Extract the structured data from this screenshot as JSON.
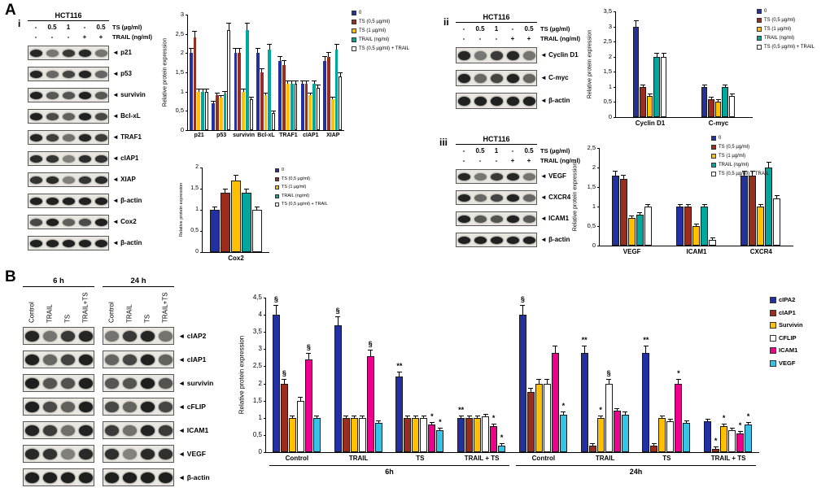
{
  "panels": {
    "a": {
      "label": "A"
    },
    "b": {
      "label": "B"
    }
  },
  "blots": [
    {
      "id": "blot-a-i",
      "sub_label": "i",
      "cell_line": "HCT116",
      "lanes": 5,
      "condition_rows": [
        {
          "values": [
            "-",
            "0.5",
            "1",
            "-",
            "0.5"
          ],
          "label": "TS (µg/ml)"
        },
        {
          "values": [
            "-",
            "-",
            "-",
            "+",
            "+"
          ],
          "label": "TRAIL (ng/ml)"
        }
      ],
      "bands": [
        "p21",
        "p53",
        "survivin",
        "Bcl-xL",
        "TRAF1",
        "cIAP1",
        "XIAP",
        "β-actin",
        "Cox2",
        "β-actin"
      ]
    },
    {
      "id": "blot-a-ii",
      "sub_label": "ii",
      "cell_line": "HCT116",
      "lanes": 5,
      "condition_rows": [
        {
          "values": [
            "-",
            "0.5",
            "1",
            "-",
            "0.5"
          ],
          "label": "TS (µg/ml)"
        },
        {
          "values": [
            "-",
            "-",
            "-",
            "+",
            "+"
          ],
          "label": "TRAIL (ng/ml)"
        }
      ],
      "bands": [
        "Cyclin D1",
        "C-myc",
        "β-actin"
      ]
    },
    {
      "id": "blot-a-iii",
      "sub_label": "iii",
      "cell_line": "HCT116",
      "lanes": 5,
      "condition_rows": [
        {
          "values": [
            "-",
            "0.5",
            "1",
            "-",
            "0.5"
          ],
          "label": "TS (µg/ml)"
        },
        {
          "values": [
            "-",
            "-",
            "-",
            "+",
            "+"
          ],
          "label": "TRAIL (ng/ml)"
        }
      ],
      "bands": [
        "VEGF",
        "CXCR4",
        "ICAM1",
        "β-actin"
      ]
    },
    {
      "id": "blot-b",
      "groups": [
        {
          "title": "6 h",
          "lanes": [
            "Control",
            "TRAIL",
            "TS",
            "TRAIL+TS"
          ]
        },
        {
          "title": "24 h",
          "lanes": [
            "Control",
            "TRAIL",
            "TS",
            "TRAIL+TS"
          ]
        }
      ],
      "bands": [
        "cIAP2",
        "cIAP1",
        "survivin",
        "cFLIP",
        "ICAM1",
        "VEGF",
        "β-actin"
      ]
    }
  ],
  "chart_data": [
    {
      "id": "a_i_main",
      "type": "bar",
      "ylabel": "Relative protein expression",
      "ylim": [
        0,
        3
      ],
      "ystep": 0.5,
      "grid": false,
      "legend_position": "right",
      "categories": [
        "p21",
        "p53",
        "survivin",
        "Bcl-xL",
        "TRAF1",
        "cIAP1",
        "XIAP"
      ],
      "series": [
        {
          "name": "0",
          "color": "#2230A2",
          "values": [
            2.0,
            0.7,
            2.0,
            2.0,
            1.8,
            1.2,
            1.8
          ]
        },
        {
          "name": "TS (0,5 µg/ml)",
          "color": "#9B2D1F",
          "values": [
            2.4,
            0.9,
            2.0,
            1.5,
            1.7,
            1.2,
            1.9
          ]
        },
        {
          "name": "TS (1 µg/ml)",
          "color": "#FFC000",
          "values": [
            1.0,
            0.85,
            1.0,
            0.9,
            1.2,
            0.9,
            0.8
          ]
        },
        {
          "name": "TRAIL (ng/ml)",
          "color": "#00A79D",
          "values": [
            1.0,
            0.95,
            2.6,
            2.1,
            1.2,
            1.2,
            2.1
          ]
        },
        {
          "name": "TS (0,5 µg/ml) + TRAIL",
          "color": "#FFFFFF",
          "values": [
            1.0,
            2.6,
            0.8,
            0.45,
            1.2,
            1.1,
            1.4
          ]
        }
      ]
    },
    {
      "id": "a_i_cox2",
      "type": "bar",
      "ylabel": "Relative protein expression",
      "ylim": [
        0,
        2
      ],
      "ystep": 0.5,
      "grid": false,
      "legend_position": "right",
      "categories": [
        "Cox2"
      ],
      "series": [
        {
          "name": "0",
          "color": "#2230A2",
          "values": [
            1.0
          ]
        },
        {
          "name": "TS (0,5 µg/ml)",
          "color": "#9B2D1F",
          "values": [
            1.4
          ]
        },
        {
          "name": "TS (1 µg/ml)",
          "color": "#FFC000",
          "values": [
            1.7
          ]
        },
        {
          "name": "TRAIL (ng/ml)",
          "color": "#00A79D",
          "values": [
            1.4
          ]
        },
        {
          "name": "TS (0,5 µg/ml) + TRAIL",
          "color": "#FFFFFF",
          "values": [
            1.0
          ]
        }
      ]
    },
    {
      "id": "a_ii",
      "type": "bar",
      "ylabel": "Relative protein expression",
      "ylim": [
        0,
        3.5
      ],
      "ystep": 0.5,
      "grid": false,
      "legend_position": "right",
      "categories": [
        "Cyclin D1",
        "C-myc"
      ],
      "series": [
        {
          "name": "0",
          "color": "#2230A2",
          "values": [
            3.0,
            1.0
          ]
        },
        {
          "name": "TS (0,5 µg/ml)",
          "color": "#9B2D1F",
          "values": [
            1.0,
            0.6
          ]
        },
        {
          "name": "TS (1 µg/ml)",
          "color": "#FFC000",
          "values": [
            0.7,
            0.5
          ]
        },
        {
          "name": "TRAIL (ng/ml)",
          "color": "#00A79D",
          "values": [
            2.0,
            1.0
          ]
        },
        {
          "name": "TS (0,5 µg/ml) + TRAIL",
          "color": "#FFFFFF",
          "values": [
            2.0,
            0.7
          ]
        }
      ]
    },
    {
      "id": "a_iii",
      "type": "bar",
      "ylabel": "Relative protein expression",
      "ylim": [
        0,
        2.5
      ],
      "ystep": 0.5,
      "grid": false,
      "legend_position": "right",
      "categories": [
        "VEGF",
        "ICAM1",
        "CXCR4"
      ],
      "series": [
        {
          "name": "0",
          "color": "#2230A2",
          "values": [
            1.8,
            1.0,
            1.8
          ]
        },
        {
          "name": "TS (0,5 µg/ml)",
          "color": "#9B2D1F",
          "values": [
            1.7,
            1.0,
            1.8
          ]
        },
        {
          "name": "TS (1 µg/ml)",
          "color": "#FFC000",
          "values": [
            0.7,
            0.5,
            1.0
          ]
        },
        {
          "name": "TRAIL (ng/ml)",
          "color": "#00A79D",
          "values": [
            0.8,
            1.0,
            2.0
          ]
        },
        {
          "name": "TS (0,5 µg/ml) + TRAIL",
          "color": "#FFFFFF",
          "values": [
            1.0,
            0.15,
            1.2
          ]
        }
      ]
    },
    {
      "id": "b_timecourse",
      "type": "bar",
      "ylabel": "Relative protein expression",
      "ylim": [
        0,
        4.5
      ],
      "ystep": 0.5,
      "grid": false,
      "legend_position": "right",
      "categories": [
        "Control",
        "TRAIL",
        "TS",
        "TRAIL + TS",
        "Control",
        "TRAIL",
        "TS",
        "TRAIL + TS"
      ],
      "group_labels": [
        {
          "text": "6h",
          "span": [
            0,
            3
          ]
        },
        {
          "text": "24h",
          "span": [
            4,
            7
          ]
        }
      ],
      "series": [
        {
          "name": "cIPA2",
          "color": "#2230A2",
          "values": [
            4.0,
            3.7,
            2.2,
            1.0,
            4.0,
            2.9,
            2.9,
            0.9
          ]
        },
        {
          "name": "cIAP1",
          "color": "#9B2D1F",
          "values": [
            2.0,
            1.0,
            1.0,
            1.0,
            1.75,
            0.2,
            0.2,
            0.1
          ]
        },
        {
          "name": "Survivin",
          "color": "#FFC000",
          "values": [
            1.0,
            1.0,
            1.0,
            1.0,
            2.0,
            1.0,
            1.0,
            0.75
          ]
        },
        {
          "name": "CFLIP",
          "color": "#FFFFFF",
          "values": [
            1.5,
            1.0,
            1.0,
            1.05,
            2.0,
            2.0,
            0.9,
            0.65
          ]
        },
        {
          "name": "ICAM1",
          "color": "#EC008C",
          "values": [
            2.7,
            2.8,
            0.8,
            0.75,
            2.9,
            1.2,
            2.0,
            0.55
          ]
        },
        {
          "name": "VEGF",
          "color": "#35C4E8",
          "values": [
            1.0,
            0.85,
            0.65,
            0.2,
            1.1,
            1.1,
            0.85,
            0.8
          ]
        }
      ],
      "annotations": [
        {
          "s": 0,
          "c": 0,
          "t": "§"
        },
        {
          "s": 1,
          "c": 0,
          "t": "§"
        },
        {
          "s": 4,
          "c": 0,
          "t": "§"
        },
        {
          "s": 0,
          "c": 1,
          "t": "§"
        },
        {
          "s": 4,
          "c": 1,
          "t": "§"
        },
        {
          "s": 0,
          "c": 2,
          "t": "**"
        },
        {
          "s": 4,
          "c": 2,
          "t": "*"
        },
        {
          "s": 5,
          "c": 2,
          "t": "*"
        },
        {
          "s": 0,
          "c": 3,
          "t": "**"
        },
        {
          "s": 4,
          "c": 3,
          "t": "*"
        },
        {
          "s": 5,
          "c": 3,
          "t": "*"
        },
        {
          "s": 0,
          "c": 4,
          "t": "§"
        },
        {
          "s": 5,
          "c": 4,
          "t": "*"
        },
        {
          "s": 0,
          "c": 5,
          "t": "**"
        },
        {
          "s": 2,
          "c": 5,
          "t": "*"
        },
        {
          "s": 3,
          "c": 5,
          "t": "§"
        },
        {
          "s": 0,
          "c": 6,
          "t": "**"
        },
        {
          "s": 4,
          "c": 6,
          "t": "*"
        },
        {
          "s": 1,
          "c": 7,
          "t": "*"
        },
        {
          "s": 2,
          "c": 7,
          "t": "*"
        },
        {
          "s": 4,
          "c": 7,
          "t": "*"
        },
        {
          "s": 5,
          "c": 7,
          "t": "*"
        }
      ]
    }
  ]
}
